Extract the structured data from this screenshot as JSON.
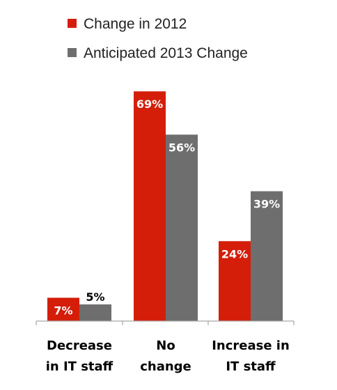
{
  "colors": {
    "series_2012": "#d41e0a",
    "series_2013": "#6e6e6e",
    "axis": "#a6a6a6",
    "label_inside": "#ffffff",
    "label_outside": "#000000"
  },
  "chart_data": {
    "type": "bar",
    "title": "",
    "xlabel": "",
    "ylabel": "",
    "ylim": [
      0,
      73
    ],
    "grid": false,
    "legend_position": "top-center",
    "categories": [
      [
        "Decrease",
        "in IT staff"
      ],
      [
        "No",
        "change"
      ],
      [
        "Increase in",
        "IT staff"
      ]
    ],
    "series": [
      {
        "name": "Change in 2012",
        "color": "#d41e0a",
        "values": [
          7,
          69,
          24
        ],
        "labels": [
          "7%",
          "69%",
          "24%"
        ]
      },
      {
        "name": "Anticipated 2013 Change",
        "color": "#6e6e6e",
        "values": [
          5,
          56,
          39
        ],
        "labels": [
          "5%",
          "56%",
          "39%"
        ]
      }
    ]
  }
}
